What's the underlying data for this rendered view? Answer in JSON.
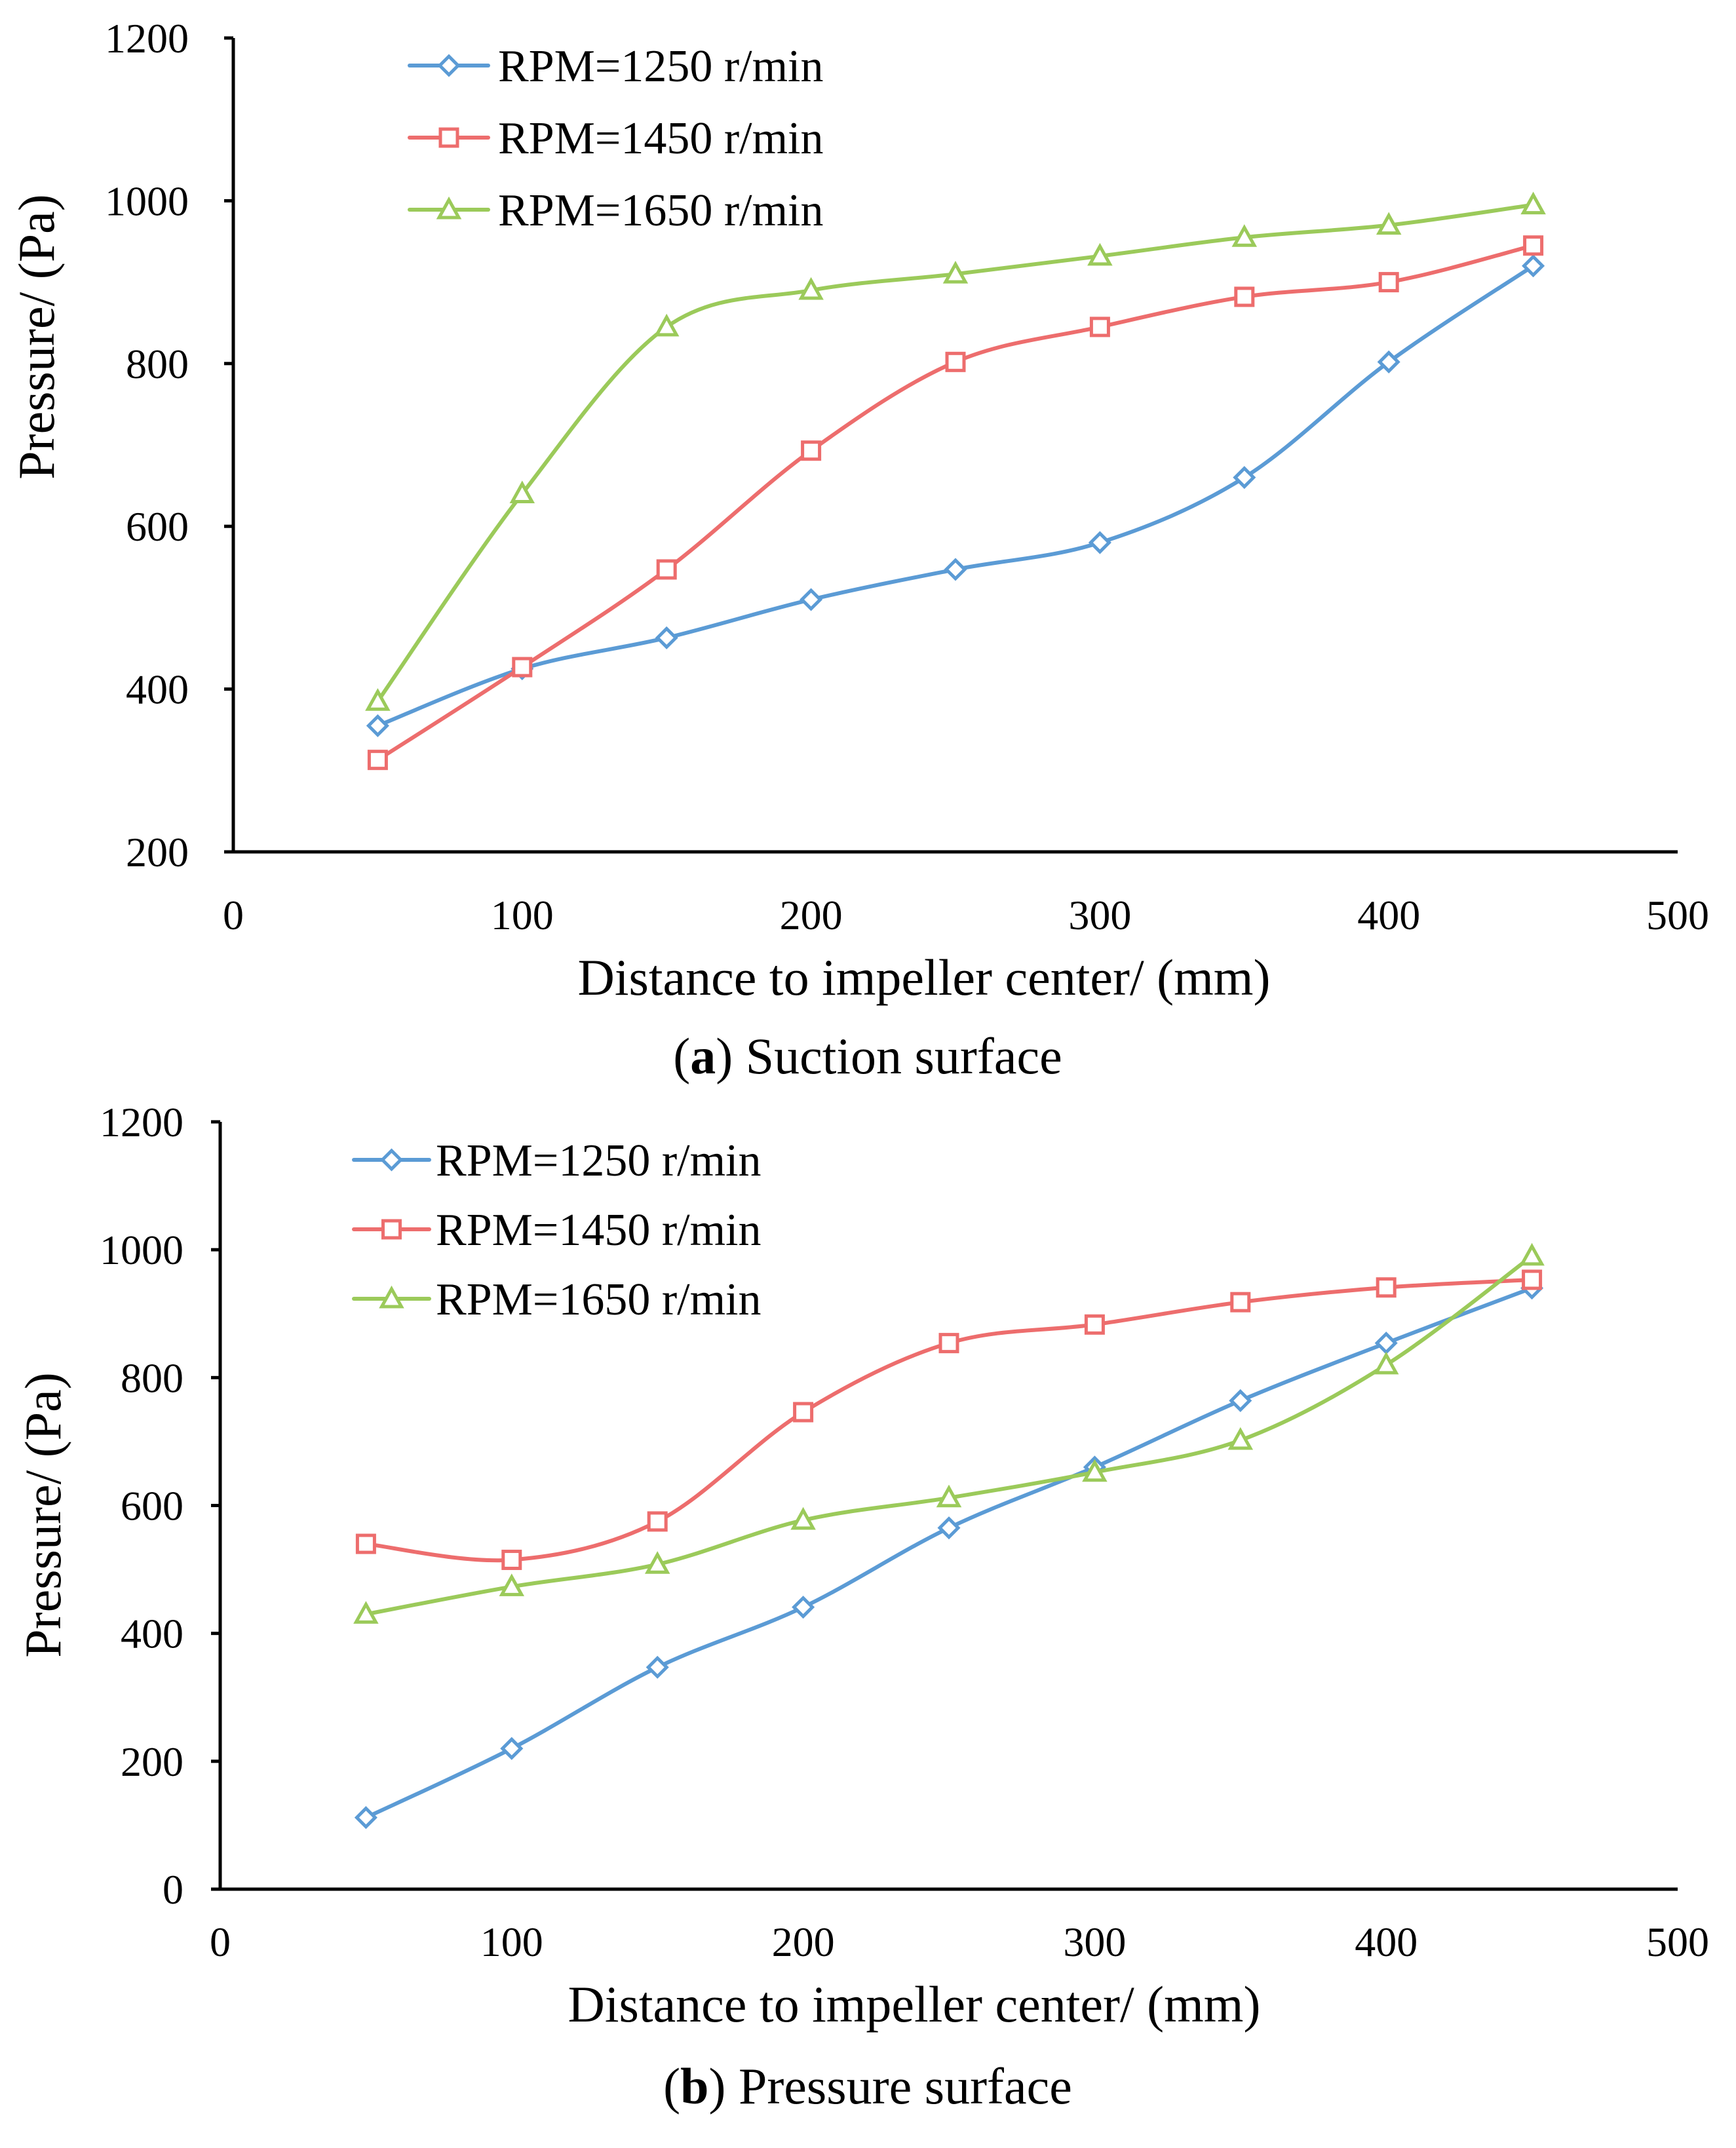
{
  "colors": {
    "s1250": "#5b9bd5",
    "s1450": "#ed6d6d",
    "s1650": "#9bca5a"
  },
  "chart_data": [
    {
      "type": "line",
      "subtitle_letter": "a",
      "subtitle_text": " Suction surface",
      "xlabel": "Distance to impeller center/ (mm)",
      "ylabel": "Pressure/ (Pa)",
      "xlim": [
        0,
        500
      ],
      "ylim": [
        200,
        1200
      ],
      "xticks": [
        0,
        100,
        200,
        300,
        400,
        500
      ],
      "yticks": [
        200,
        400,
        600,
        800,
        1000,
        1200
      ],
      "grid": false,
      "legend": "top-left",
      "x": [
        50,
        100,
        150,
        200,
        250,
        300,
        350,
        400,
        450
      ],
      "series": [
        {
          "name": "RPM=1250 r/min",
          "marker": "diamond",
          "color_key": "s1250",
          "values": [
            355,
            425,
            463,
            510,
            547,
            580,
            660,
            802,
            920
          ]
        },
        {
          "name": "RPM=1450 r/min",
          "marker": "square",
          "color_key": "s1450",
          "values": [
            313,
            427,
            547,
            693,
            802,
            845,
            882,
            900,
            945
          ]
        },
        {
          "name": "RPM=1650 r/min",
          "marker": "triangle",
          "color_key": "s1650",
          "values": [
            385,
            640,
            845,
            890,
            910,
            932,
            955,
            970,
            995
          ]
        }
      ]
    },
    {
      "type": "line",
      "subtitle_letter": "b",
      "subtitle_text": " Pressure surface",
      "xlabel": "Distance to impeller center/ (mm)",
      "ylabel": "Pressure/ (Pa)",
      "xlim": [
        0,
        500
      ],
      "ylim": [
        0,
        1200
      ],
      "xticks": [
        0,
        100,
        200,
        300,
        400,
        500
      ],
      "yticks": [
        0,
        200,
        400,
        600,
        800,
        1000,
        1200
      ],
      "grid": false,
      "legend": "top-left",
      "x": [
        50,
        100,
        150,
        200,
        250,
        300,
        350,
        400,
        450
      ],
      "series": [
        {
          "name": "RPM=1250 r/min",
          "marker": "diamond",
          "color_key": "s1250",
          "values": [
            112,
            220,
            347,
            441,
            565,
            660,
            764,
            854,
            940
          ]
        },
        {
          "name": "RPM=1450 r/min",
          "marker": "square",
          "color_key": "s1450",
          "values": [
            540,
            515,
            575,
            746,
            854,
            883,
            918,
            941,
            953
          ]
        },
        {
          "name": "RPM=1650 r/min",
          "marker": "triangle",
          "color_key": "s1650",
          "values": [
            430,
            473,
            508,
            577,
            612,
            652,
            702,
            820,
            990
          ]
        }
      ]
    }
  ]
}
